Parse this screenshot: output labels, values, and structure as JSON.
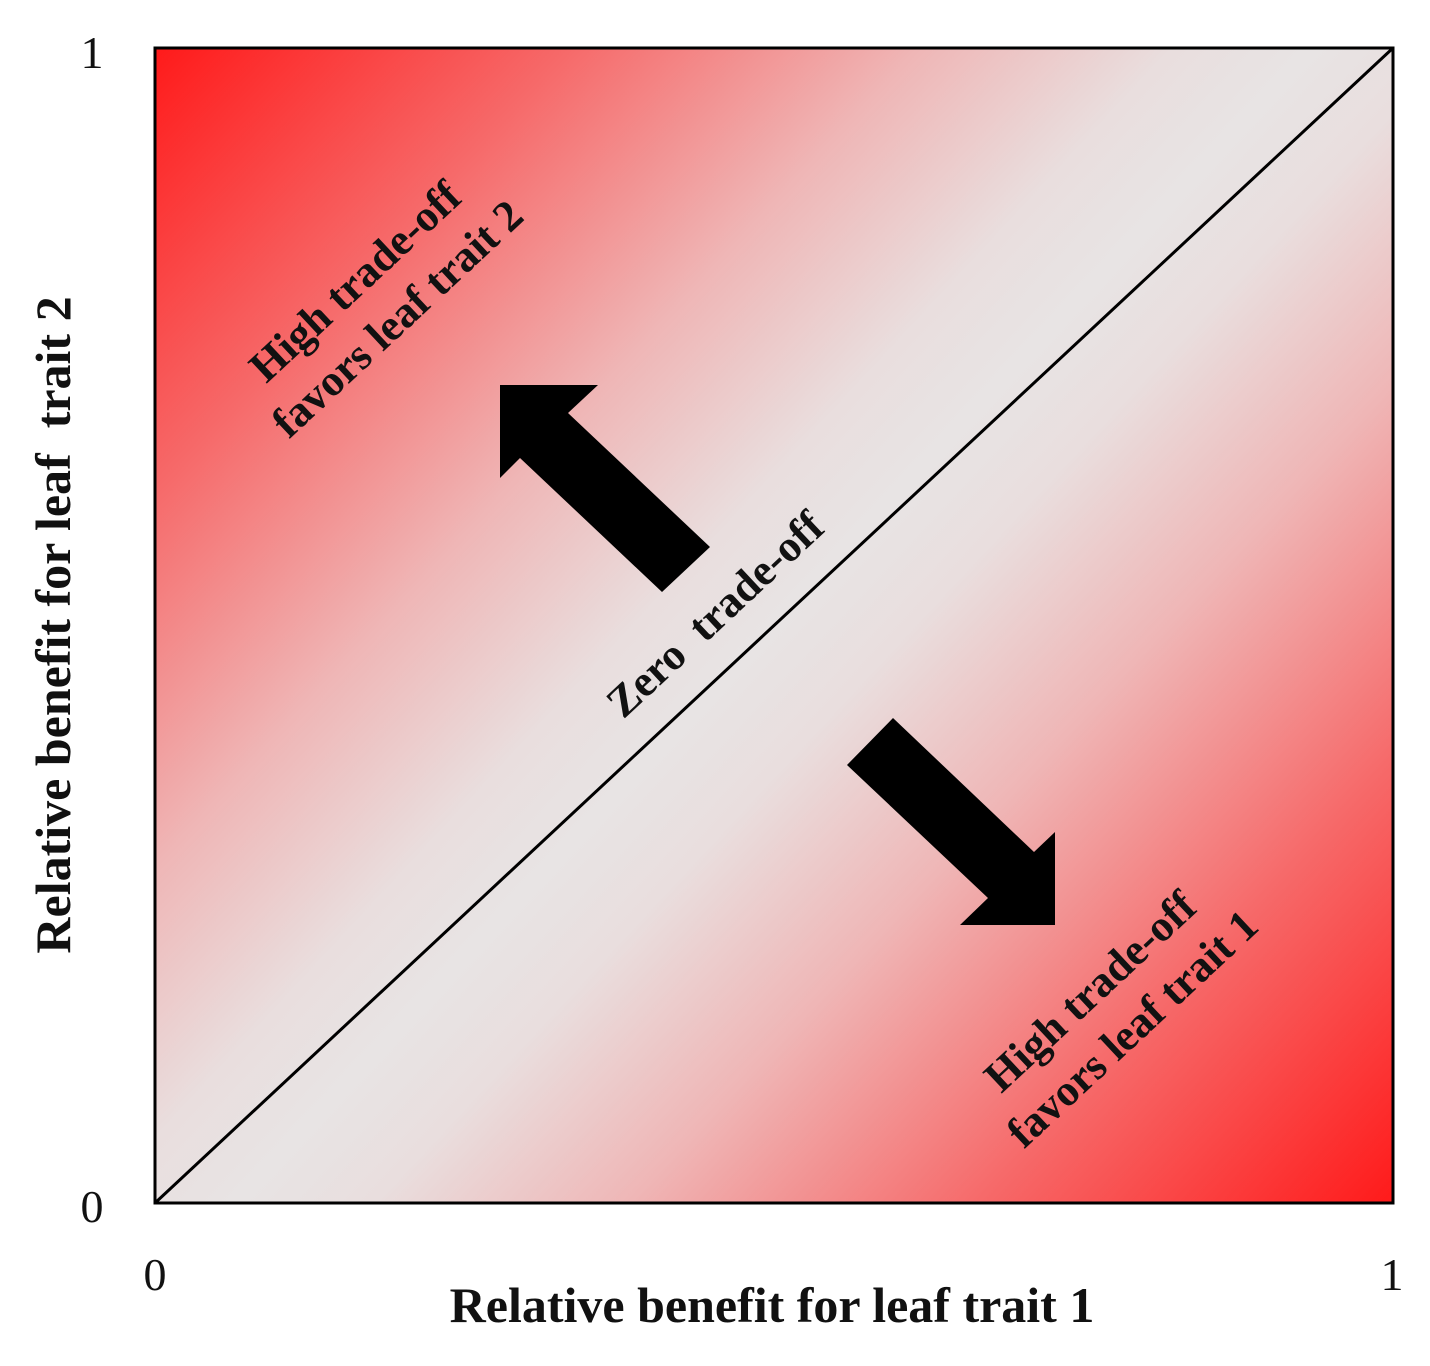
{
  "axes": {
    "x_label": "Relative benefit for leaf trait 1",
    "y_label": "Relative benefit for leaf  trait 2",
    "x_ticks": [
      "0",
      "1"
    ],
    "y_ticks": [
      "0",
      "1"
    ],
    "x_range": [
      0,
      1
    ],
    "y_range": [
      0,
      1
    ]
  },
  "diagonal": {
    "label": "Zero  trade-off",
    "from": [
      0,
      0
    ],
    "to": [
      1,
      1
    ]
  },
  "regions": {
    "upper_left": {
      "line1": "High trade-off",
      "line2": "favors leaf trait 2"
    },
    "lower_right": {
      "line1": "High trade-off",
      "line2": "favors leaf trait 1"
    }
  },
  "colors": {
    "extreme": "#ff1a1a",
    "neutral": "#e8e4e4",
    "line": "#000000",
    "arrow": "#000000"
  }
}
